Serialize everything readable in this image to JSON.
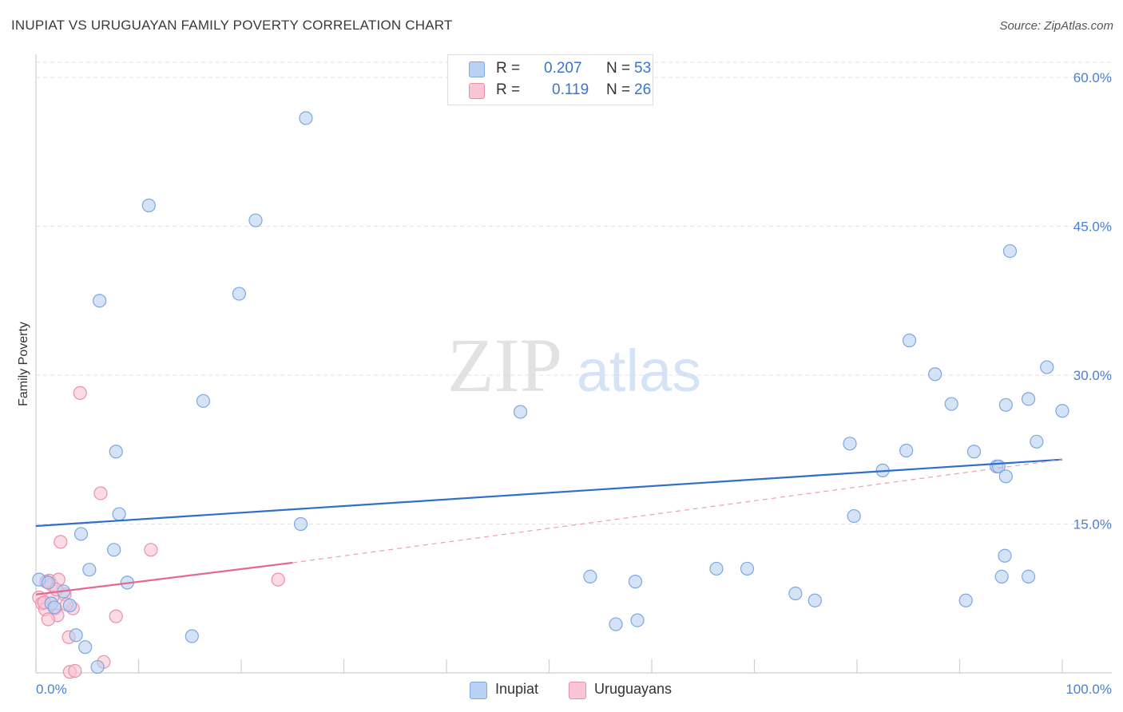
{
  "header": {
    "title": "INUPIAT VS URUGUAYAN FAMILY POVERTY CORRELATION CHART",
    "source": "Source: ZipAtlas.com"
  },
  "watermark": {
    "zip": "ZIP",
    "atlas": "atlas"
  },
  "legend": {
    "r_label": "R =",
    "n_label": "N =",
    "series": [
      {
        "name": "Inupiat",
        "r": "0.207",
        "n": "53",
        "fill": "#b9d1f2",
        "stroke": "#7ea6e0"
      },
      {
        "name": "Uruguayans",
        "r": "0.119",
        "n": "26",
        "fill": "#f8c5d4",
        "stroke": "#ea90ab"
      }
    ]
  },
  "chart_data": {
    "type": "scatter",
    "title": "INUPIAT VS URUGUAYAN FAMILY POVERTY CORRELATION CHART",
    "xlabel": "",
    "ylabel": "Family Poverty",
    "xlim": [
      0,
      100
    ],
    "ylim": [
      0,
      60
    ],
    "x_tick_labels": [
      "0.0%",
      "100.0%"
    ],
    "y_ticks": [
      15,
      30,
      45,
      60
    ],
    "y_tick_labels": [
      "15.0%",
      "30.0%",
      "45.0%",
      "60.0%"
    ],
    "grid": true,
    "series": [
      {
        "name": "Inupiat",
        "color": "#3a74cc",
        "points": [
          [
            0.3,
            9.4
          ],
          [
            1.2,
            9.1
          ],
          [
            1.5,
            7.0
          ],
          [
            1.8,
            6.6
          ],
          [
            2.7,
            8.2
          ],
          [
            3.3,
            6.8
          ],
          [
            3.9,
            3.8
          ],
          [
            4.4,
            14.0
          ],
          [
            4.8,
            2.6
          ],
          [
            5.2,
            10.4
          ],
          [
            6.0,
            0.6
          ],
          [
            6.2,
            37.5
          ],
          [
            7.6,
            12.4
          ],
          [
            7.8,
            22.3
          ],
          [
            8.1,
            16.0
          ],
          [
            8.9,
            9.1
          ],
          [
            11.0,
            47.1
          ],
          [
            15.2,
            3.7
          ],
          [
            16.3,
            27.4
          ],
          [
            19.8,
            38.2
          ],
          [
            21.4,
            45.6
          ],
          [
            26.3,
            55.9
          ],
          [
            25.8,
            15.0
          ],
          [
            47.2,
            26.3
          ],
          [
            54.0,
            9.7
          ],
          [
            56.5,
            4.9
          ],
          [
            58.4,
            9.2
          ],
          [
            58.6,
            5.3
          ],
          [
            66.3,
            10.5
          ],
          [
            69.3,
            10.5
          ],
          [
            74.0,
            8.0
          ],
          [
            75.9,
            7.3
          ],
          [
            79.3,
            23.1
          ],
          [
            79.7,
            15.8
          ],
          [
            82.5,
            20.4
          ],
          [
            84.8,
            22.4
          ],
          [
            85.1,
            33.5
          ],
          [
            87.6,
            30.1
          ],
          [
            89.2,
            27.1
          ],
          [
            90.6,
            7.3
          ],
          [
            91.4,
            22.3
          ],
          [
            93.6,
            20.8
          ],
          [
            93.8,
            20.8
          ],
          [
            94.1,
            9.7
          ],
          [
            94.4,
            11.8
          ],
          [
            94.5,
            19.8
          ],
          [
            94.9,
            42.5
          ],
          [
            94.5,
            27.0
          ],
          [
            96.7,
            27.6
          ],
          [
            97.5,
            23.3
          ],
          [
            96.7,
            9.7
          ],
          [
            98.5,
            30.8
          ],
          [
            100.0,
            26.4
          ]
        ],
        "trendline": {
          "x": [
            0,
            100
          ],
          "y": [
            14.8,
            21.5
          ]
        }
      },
      {
        "name": "Uruguayans",
        "color": "#e06a92",
        "points": [
          [
            0.3,
            7.6
          ],
          [
            0.6,
            7.0
          ],
          [
            0.9,
            6.4
          ],
          [
            1.3,
            9.3
          ],
          [
            1.5,
            8.9
          ],
          [
            1.9,
            6.5
          ],
          [
            2.1,
            5.8
          ],
          [
            2.2,
            9.4
          ],
          [
            2.4,
            13.2
          ],
          [
            2.8,
            7.9
          ],
          [
            3.2,
            3.6
          ],
          [
            3.3,
            0.1
          ],
          [
            3.6,
            6.5
          ],
          [
            3.8,
            0.2
          ],
          [
            4.3,
            28.2
          ],
          [
            6.3,
            18.1
          ],
          [
            6.6,
            1.1
          ],
          [
            7.8,
            5.7
          ],
          [
            11.2,
            12.4
          ],
          [
            23.6,
            9.4
          ],
          [
            1.0,
            9.2
          ],
          [
            1.6,
            7.6
          ],
          [
            0.8,
            7.1
          ],
          [
            2.0,
            8.4
          ],
          [
            3.0,
            6.9
          ],
          [
            1.2,
            5.4
          ]
        ],
        "trendline": {
          "x": [
            0,
            25
          ],
          "y": [
            7.9,
            11.1
          ]
        },
        "trendline_extended": {
          "x": [
            25,
            100
          ],
          "y": [
            11.1,
            21.5
          ]
        }
      }
    ]
  },
  "bottom_legend": [
    "Inupiat",
    "Uruguayans"
  ]
}
